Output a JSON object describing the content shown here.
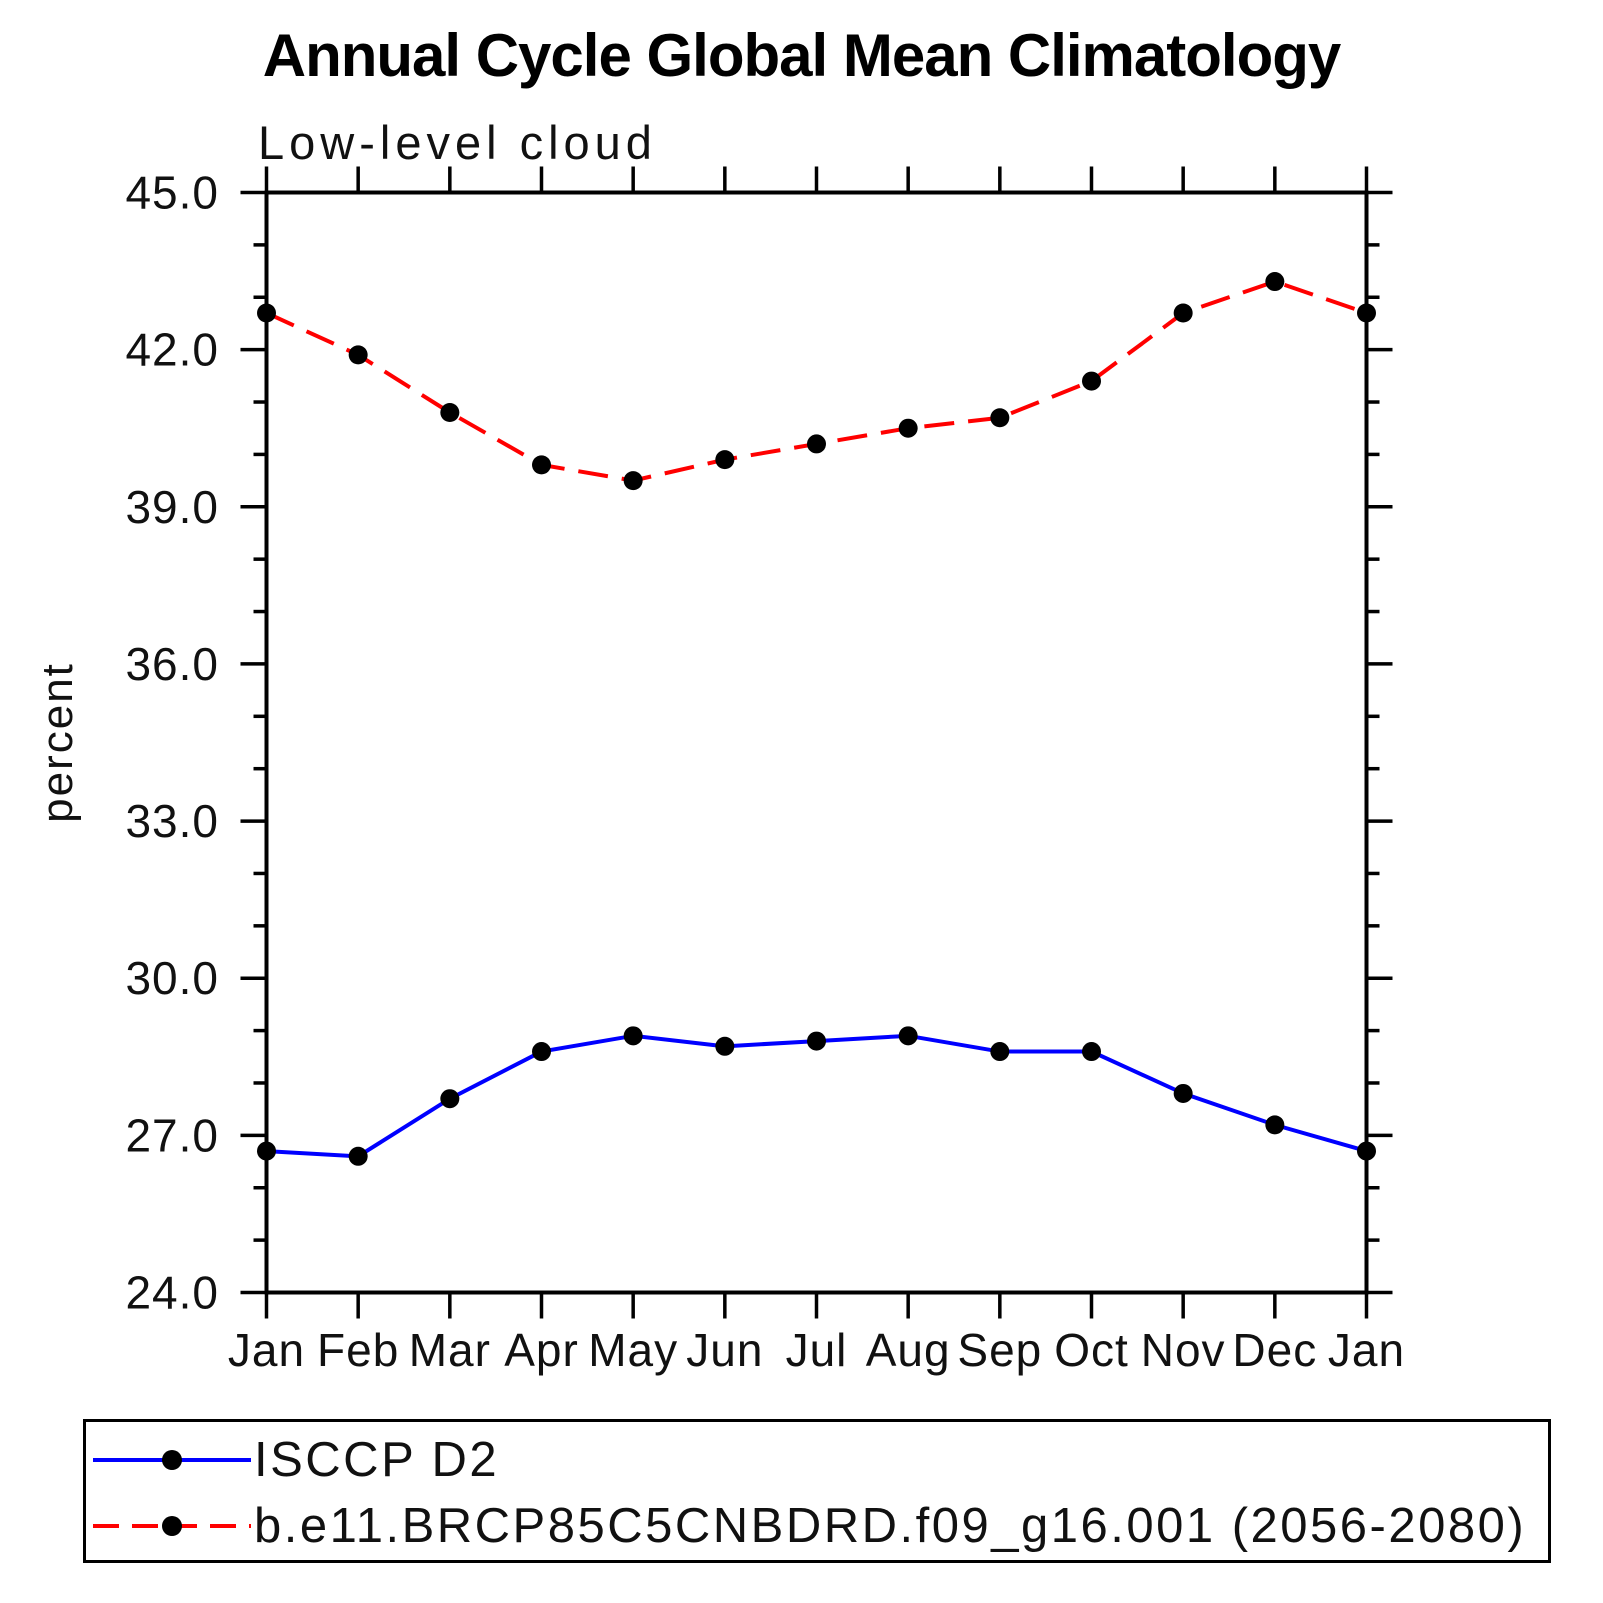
{
  "page": {
    "title": "Annual Cycle Global Mean Climatology",
    "subtitle": "Low-level cloud"
  },
  "chart_data": {
    "type": "line",
    "title": "Annual Cycle Global Mean Climatology",
    "subtitle": "Low-level cloud",
    "xlabel": "",
    "ylabel": "percent",
    "x_categories": [
      "Jan",
      "Feb",
      "Mar",
      "Apr",
      "May",
      "Jun",
      "Jul",
      "Aug",
      "Sep",
      "Oct",
      "Nov",
      "Dec",
      "Jan"
    ],
    "ylim": [
      24.0,
      45.0
    ],
    "ytick_major_interval": 3.0,
    "ytick_minor_interval": 1.0,
    "ytick_labels": [
      "24.0",
      "27.0",
      "30.0",
      "33.0",
      "36.0",
      "39.0",
      "42.0",
      "45.0"
    ],
    "grid": false,
    "legend_position": "bottom-left-box",
    "series": [
      {
        "name": "ISCCP D2",
        "color": "#0000ff",
        "line_style": "solid",
        "marker": "filled-circle",
        "marker_color": "#000000",
        "values": [
          26.7,
          26.6,
          27.7,
          28.6,
          28.9,
          28.7,
          28.8,
          28.9,
          28.6,
          28.6,
          27.8,
          27.2,
          26.7
        ]
      },
      {
        "name": "b.e11.BRCP85C5CNBDRD.f09_g16.001 (2056-2080)",
        "color": "#ff0000",
        "line_style": "dashed",
        "marker": "filled-circle",
        "marker_color": "#000000",
        "values": [
          42.7,
          41.9,
          40.8,
          39.8,
          39.5,
          39.9,
          40.2,
          40.5,
          40.7,
          41.4,
          42.7,
          43.3,
          42.7
        ]
      }
    ]
  }
}
